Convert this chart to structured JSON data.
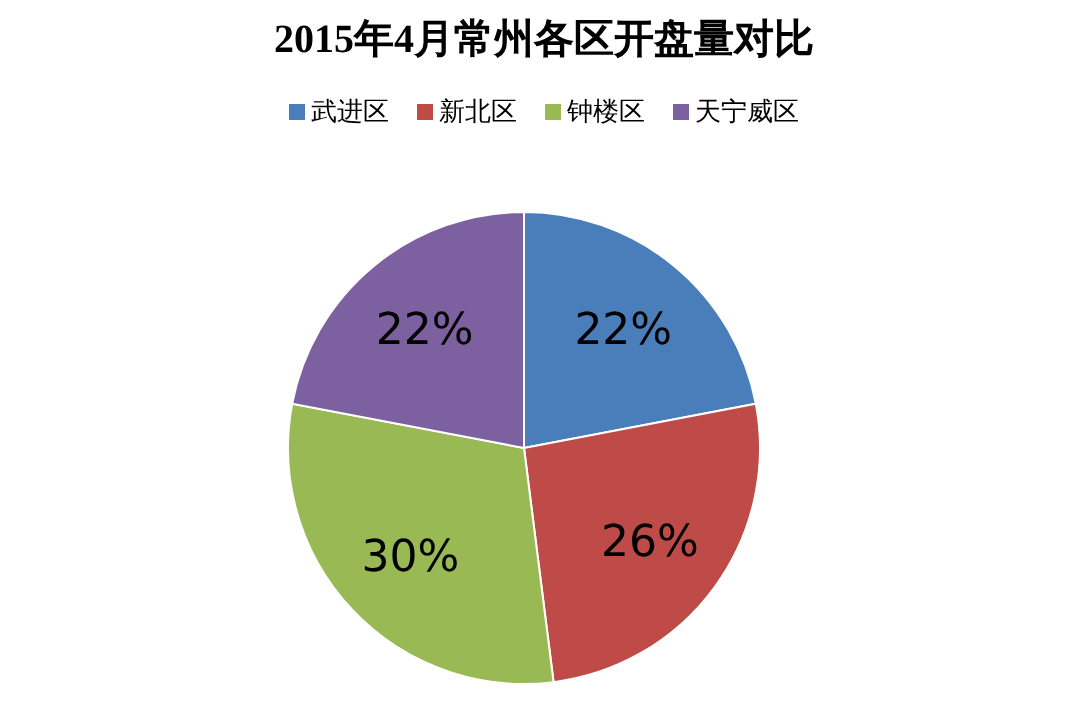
{
  "chart_data": {
    "type": "pie",
    "title": "2015年4月常州各区开盘量对比",
    "categories": [
      "武进区",
      "新北区",
      "钟楼区",
      "天宁威区"
    ],
    "values": [
      22,
      26,
      30,
      22
    ],
    "colors": [
      "#4a7ebb",
      "#be4b48",
      "#98b954",
      "#7d60a0"
    ],
    "value_labels": [
      "22%",
      "26%",
      "30%",
      "22%"
    ],
    "legend": "top"
  }
}
